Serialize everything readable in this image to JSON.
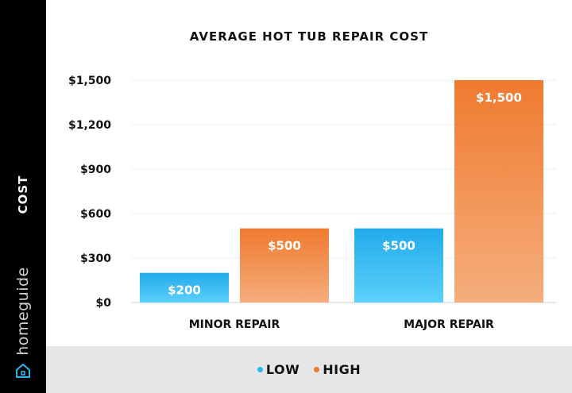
{
  "sidebar": {
    "axis_label": "COST",
    "brand": "homeguide",
    "icon": "house-icon"
  },
  "legend": {
    "items": [
      {
        "label": "LOW",
        "color": "#2bb6ee"
      },
      {
        "label": "HIGH",
        "color": "#f07a30"
      }
    ]
  },
  "chart_data": {
    "type": "bar",
    "title": "AVERAGE HOT TUB REPAIR COST",
    "ylabel": "COST",
    "categories": [
      "MINOR REPAIR",
      "MAJOR REPAIR"
    ],
    "series": [
      {
        "name": "LOW",
        "values": [
          200,
          500
        ],
        "labels": [
          "$200",
          "$500"
        ],
        "color": "#2bb6ee"
      },
      {
        "name": "HIGH",
        "values": [
          500,
          1500
        ],
        "labels": [
          "$500",
          "$1,500"
        ],
        "color": "#f07a30"
      }
    ],
    "yticks": [
      0,
      300,
      600,
      900,
      1200,
      1500
    ],
    "ytick_labels": [
      "$0",
      "$300",
      "$600",
      "$900",
      "$1,200",
      "$1,500"
    ],
    "ylim": [
      0,
      1500
    ],
    "grid": true
  }
}
